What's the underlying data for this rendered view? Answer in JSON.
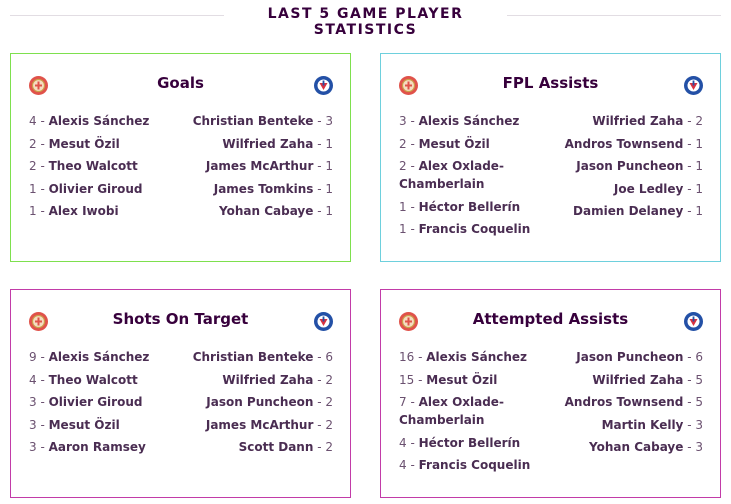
{
  "page": {
    "title": "LAST 5 GAME PLAYER STATISTICS"
  },
  "colors": {
    "goals_border": "#7ee04e",
    "fpl_assists_border": "#6ed0dd",
    "shots_border": "#c23ba8",
    "attempted_border": "#c23ba8",
    "arsenal_badge": "#e0524a",
    "palace_badge": "#2350a6"
  },
  "badges": {
    "home": "arsenal-badge-icon",
    "away": "crystal-palace-badge-icon"
  },
  "cards": [
    {
      "title": "Goals",
      "home": [
        {
          "value": "4",
          "name": "Alexis Sánchez"
        },
        {
          "value": "2",
          "name": "Mesut Özil"
        },
        {
          "value": "2",
          "name": "Theo Walcott"
        },
        {
          "value": "1",
          "name": "Olivier Giroud"
        },
        {
          "value": "1",
          "name": "Alex Iwobi"
        }
      ],
      "away": [
        {
          "value": "3",
          "name": "Christian Benteke"
        },
        {
          "value": "1",
          "name": "Wilfried Zaha"
        },
        {
          "value": "1",
          "name": "James McArthur"
        },
        {
          "value": "1",
          "name": "James Tomkins"
        },
        {
          "value": "1",
          "name": "Yohan Cabaye"
        }
      ]
    },
    {
      "title": "FPL Assists",
      "home": [
        {
          "value": "3",
          "name": "Alexis Sánchez"
        },
        {
          "value": "2",
          "name": "Mesut Özil"
        },
        {
          "value": "2",
          "name": "Alex Oxlade-Chamberlain"
        },
        {
          "value": "1",
          "name": "Héctor Bellerín"
        },
        {
          "value": "1",
          "name": "Francis Coquelin"
        }
      ],
      "away": [
        {
          "value": "2",
          "name": "Wilfried Zaha"
        },
        {
          "value": "1",
          "name": "Andros Townsend"
        },
        {
          "value": "1",
          "name": "Jason Puncheon"
        },
        {
          "value": "1",
          "name": "Joe Ledley"
        },
        {
          "value": "1",
          "name": "Damien Delaney"
        }
      ]
    },
    {
      "title": "Shots On Target",
      "home": [
        {
          "value": "9",
          "name": "Alexis Sánchez"
        },
        {
          "value": "4",
          "name": "Theo Walcott"
        },
        {
          "value": "3",
          "name": "Olivier Giroud"
        },
        {
          "value": "3",
          "name": "Mesut Özil"
        },
        {
          "value": "3",
          "name": "Aaron Ramsey"
        }
      ],
      "away": [
        {
          "value": "6",
          "name": "Christian Benteke"
        },
        {
          "value": "2",
          "name": "Wilfried Zaha"
        },
        {
          "value": "2",
          "name": "Jason Puncheon"
        },
        {
          "value": "2",
          "name": "James McArthur"
        },
        {
          "value": "2",
          "name": "Scott Dann"
        }
      ]
    },
    {
      "title": "Attempted Assists",
      "home": [
        {
          "value": "16",
          "name": "Alexis Sánchez"
        },
        {
          "value": "15",
          "name": "Mesut Özil"
        },
        {
          "value": "7",
          "name": "Alex Oxlade-Chamberlain"
        },
        {
          "value": "4",
          "name": "Héctor Bellerín"
        },
        {
          "value": "4",
          "name": "Francis Coquelin"
        }
      ],
      "away": [
        {
          "value": "6",
          "name": "Jason Puncheon"
        },
        {
          "value": "5",
          "name": "Wilfried Zaha"
        },
        {
          "value": "5",
          "name": "Andros Townsend"
        },
        {
          "value": "3",
          "name": "Martin Kelly"
        },
        {
          "value": "3",
          "name": "Yohan Cabaye"
        }
      ]
    }
  ]
}
